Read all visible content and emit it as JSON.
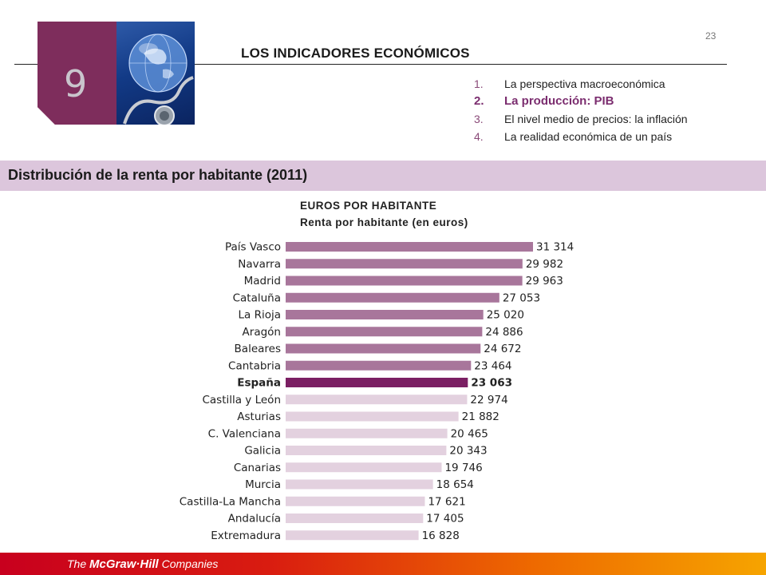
{
  "page_number": "23",
  "chapter": {
    "number": "9",
    "title": "LOS INDICADORES ECONÓMICOS"
  },
  "toc": [
    {
      "num": "1.",
      "label": "La perspectiva macroeconómica",
      "active": false
    },
    {
      "num": "2.",
      "label": "La producción:  PIB",
      "active": true
    },
    {
      "num": "3.",
      "label": "El nivel medio de precios: la inflación",
      "active": false
    },
    {
      "num": "4.",
      "label": "La realidad económica de un país",
      "active": false
    }
  ],
  "section_title": "Distribución de la renta por habitante (2011)",
  "footer": {
    "prefix": "The ",
    "brand": "McGraw·Hill",
    "suffix": " Companies"
  },
  "colors": {
    "above": "#a8769b",
    "national": "#7b1f63",
    "below": "#e3d1df",
    "accent": "#7e2d5c"
  },
  "chart_data": {
    "type": "bar",
    "orientation": "horizontal",
    "title": "EUROS POR HABITANTE",
    "subtitle": "Renta por habitante (en euros)",
    "highlight": "España",
    "categories": [
      "País Vasco",
      "Navarra",
      "Madrid",
      "Cataluña",
      "La Rioja",
      "Aragón",
      "Baleares",
      "Cantabria",
      "España",
      "Castilla y León",
      "Asturias",
      "C. Valenciana",
      "Galicia",
      "Canarias",
      "Murcia",
      "Castilla-La Mancha",
      "Andalucía",
      "Extremadura"
    ],
    "values": [
      31314,
      29982,
      29963,
      27053,
      25020,
      24886,
      24672,
      23464,
      23063,
      22974,
      21882,
      20465,
      20343,
      19746,
      18654,
      17621,
      17405,
      16828
    ],
    "value_labels": [
      "31 314",
      "29 982",
      "29 963",
      "27 053",
      "25 020",
      "24 886",
      "24 672",
      "23 464",
      "23 063",
      "22 974",
      "21 882",
      "20 465",
      "20 343",
      "19 746",
      "18 654",
      "17 621",
      "17 405",
      "16 828"
    ],
    "grid": false,
    "legend": "none"
  }
}
